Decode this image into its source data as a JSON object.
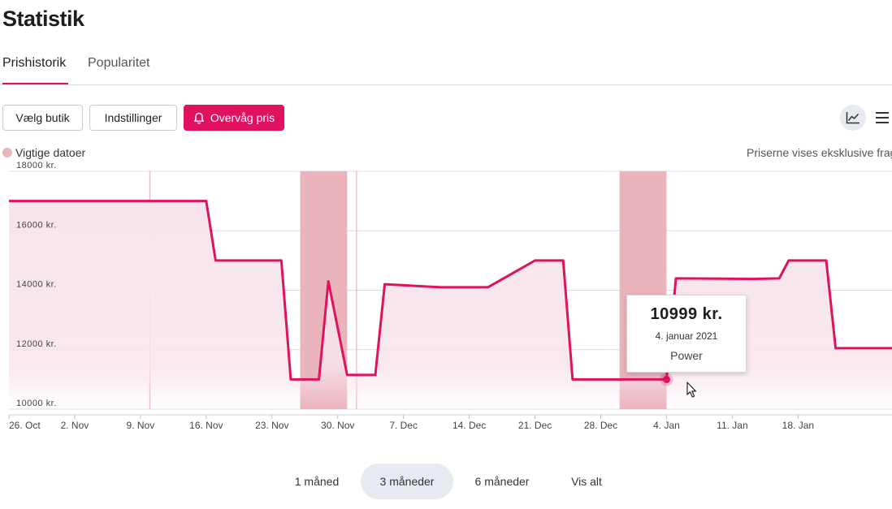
{
  "page": {
    "title": "Statistik"
  },
  "tabs": [
    {
      "label": "Prishistorik",
      "active": true
    },
    {
      "label": "Popularitet",
      "active": false
    }
  ],
  "toolbar": {
    "select_shop": "Vælg butik",
    "settings": "Indstillinger",
    "watch_price": "Overvåg pris",
    "bell_icon": "bell-icon",
    "chart_icon": "line-chart-icon",
    "menu_icon": "hamburger-menu-icon"
  },
  "legend": {
    "important_dates": "Vigtige datoer",
    "important_dates_color": "#eab4bd"
  },
  "note": "Priserne vises eksklusive fragt",
  "colors": {
    "accent": "#e0115f",
    "highlight_band": "#eab4bd",
    "area_fill": "#f8e4ec"
  },
  "tooltip": {
    "price": "10999 kr.",
    "date": "4. januar 2021",
    "shop": "Power"
  },
  "range_buttons": [
    {
      "label": "1 måned",
      "active": false
    },
    {
      "label": "3 måneder",
      "active": true
    },
    {
      "label": "6 måneder",
      "active": false
    },
    {
      "label": "Vis alt",
      "active": false
    }
  ],
  "chart_data": {
    "type": "line",
    "series": [
      {
        "x": [
          "2020-10-26",
          "2020-11-11",
          "2020-11-16",
          "2020-11-17",
          "2020-11-24",
          "2020-11-25",
          "2020-11-28",
          "2020-11-29",
          "2020-12-01",
          "2020-12-04",
          "2020-12-05",
          "2020-12-11",
          "2020-12-16",
          "2020-12-21",
          "2020-12-24",
          "2020-12-25",
          "2021-01-04",
          "2021-01-05",
          "2021-01-13",
          "2021-01-16",
          "2021-01-17",
          "2021-01-21",
          "2021-01-22",
          "2021-01-25",
          "2021-01-26",
          "2021-01-28"
        ],
        "values": [
          17000,
          17000,
          17000,
          15000,
          15000,
          11000,
          11000,
          14300,
          11150,
          11150,
          14200,
          14100,
          14100,
          15000,
          15000,
          11000,
          10999,
          14400,
          14380,
          14400,
          15000,
          15000,
          12050,
          12050,
          12050,
          12050
        ]
      }
    ],
    "highlight_ranges": [
      [
        "2020-11-26",
        "2020-12-01"
      ],
      [
        "2020-12-30",
        "2021-01-04"
      ]
    ],
    "marker_lines": [
      "2020-11-10",
      "2020-11-30",
      "2020-12-02"
    ],
    "x_ticks": [
      "26. Oct",
      "2. Nov",
      "9. Nov",
      "16. Nov",
      "23. Nov",
      "30. Nov",
      "7. Dec",
      "14. Dec",
      "21. Dec",
      "28. Dec",
      "4. Jan",
      "11. Jan",
      "18. Jan"
    ],
    "x_tick_dates": [
      "2020-10-26",
      "2020-11-02",
      "2020-11-09",
      "2020-11-16",
      "2020-11-23",
      "2020-11-30",
      "2020-12-07",
      "2020-12-14",
      "2020-12-21",
      "2020-12-28",
      "2021-01-04",
      "2021-01-11",
      "2021-01-18"
    ],
    "y_ticks": [
      "18000 kr.",
      "16000 kr.",
      "14000 kr.",
      "12000 kr.",
      "10000 kr."
    ],
    "y_tick_values": [
      18000,
      16000,
      14000,
      12000,
      10000
    ],
    "ylim": [
      10000,
      18000
    ],
    "xlim": [
      "2020-10-26",
      "2021-01-28"
    ],
    "grid": true,
    "highlighted_point": {
      "x": "2021-01-04",
      "y": 10999
    }
  }
}
